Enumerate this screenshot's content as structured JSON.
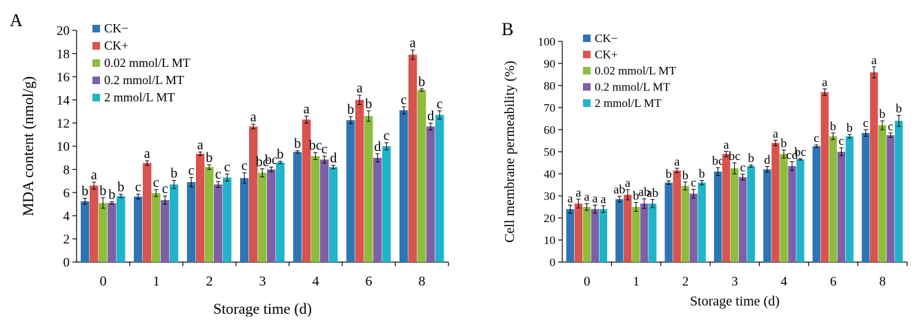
{
  "chart_data": [
    {
      "panel_label": "A",
      "type": "bar",
      "xlabel": "Storage time (d)",
      "ylabel": "MDA content (nmol/g)",
      "ylim": [
        0,
        20
      ],
      "yticks": [
        "0",
        "2",
        "4",
        "6",
        "8",
        "10",
        "12",
        "14",
        "16",
        "18",
        "20"
      ],
      "grid": false,
      "legend_position": "top-left",
      "categories": [
        "0",
        "1",
        "2",
        "3",
        "4",
        "6",
        "8"
      ],
      "series": [
        {
          "name": "CK−",
          "color": "#2e75b6",
          "values": [
            5.25,
            5.65,
            6.9,
            7.25,
            9.5,
            12.25,
            13.1
          ],
          "errors": [
            0.25,
            0.2,
            0.4,
            0.45,
            0.1,
            0.3,
            0.3
          ],
          "labels": [
            "b",
            "c",
            "c",
            "c",
            "b",
            "b",
            "c"
          ]
        },
        {
          "name": "CK+",
          "color": "#d9534f",
          "values": [
            6.6,
            8.55,
            9.35,
            11.7,
            12.3,
            14.0,
            17.9
          ],
          "errors": [
            0.3,
            0.2,
            0.15,
            0.2,
            0.3,
            0.4,
            0.4
          ],
          "labels": [
            "a",
            "a",
            "a",
            "a",
            "a",
            "a",
            "a"
          ]
        },
        {
          "name": "0.02 mmol/L MT",
          "color": "#8ebd3e",
          "values": [
            5.1,
            5.95,
            8.2,
            7.7,
            9.15,
            12.6,
            14.85
          ],
          "errors": [
            0.45,
            0.3,
            0.2,
            0.35,
            0.3,
            0.45,
            0.1
          ],
          "labels": [
            "b",
            "c",
            "b",
            "bc",
            "bc",
            "b",
            "b"
          ]
        },
        {
          "name": "0.2 mmol/L MT",
          "color": "#7f5fa8",
          "values": [
            5.1,
            5.35,
            6.7,
            8.0,
            8.85,
            9.0,
            11.7
          ],
          "errors": [
            0.1,
            0.35,
            0.25,
            0.2,
            0.3,
            0.35,
            0.3
          ],
          "labels": [
            "b",
            "c",
            "c",
            "bc",
            "c",
            "d",
            "d"
          ]
        },
        {
          "name": "2 mmol/L MT",
          "color": "#1fb4c9",
          "values": [
            5.7,
            6.7,
            7.3,
            8.6,
            8.2,
            10.0,
            12.7
          ],
          "errors": [
            0.15,
            0.35,
            0.3,
            0.1,
            0.15,
            0.3,
            0.35
          ],
          "labels": [
            "b",
            "b",
            "c",
            "b",
            "d",
            "c",
            "c"
          ]
        }
      ]
    },
    {
      "panel_label": "B",
      "type": "bar",
      "xlabel": "Storage time (d)",
      "ylabel": "Cell membrane permeability (%)",
      "ylim": [
        0,
        100
      ],
      "yticks": [
        "0",
        "10",
        "20",
        "30",
        "40",
        "50",
        "60",
        "70",
        "80",
        "90",
        "100"
      ],
      "grid": false,
      "legend_position": "top-left",
      "categories": [
        "0",
        "1",
        "2",
        "3",
        "4",
        "6",
        "8"
      ],
      "series": [
        {
          "name": "CK−",
          "color": "#2e75b6",
          "values": [
            24,
            28.5,
            36,
            41,
            42,
            52.5,
            58.5
          ],
          "errors": [
            1.8,
            1.3,
            0.8,
            1.8,
            1.3,
            0.6,
            1.5
          ],
          "labels": [
            "a",
            "ab",
            "b",
            "bc",
            "d",
            "c",
            "c"
          ]
        },
        {
          "name": "CK+",
          "color": "#d9534f",
          "values": [
            26.5,
            30.5,
            41.5,
            49,
            54,
            77,
            86
          ],
          "errors": [
            2.0,
            2.3,
            1.0,
            1.2,
            1.2,
            1.5,
            2.5
          ],
          "labels": [
            "a",
            "a",
            "a",
            "a",
            "a",
            "a",
            "a"
          ]
        },
        {
          "name": "0.02 mmol/L MT",
          "color": "#8ebd3e",
          "values": [
            25,
            25,
            34.5,
            42.5,
            49,
            57,
            62
          ],
          "errors": [
            1.5,
            2.0,
            1.8,
            2.5,
            1.8,
            1.5,
            2.0
          ],
          "labels": [
            "a",
            "b",
            "b",
            "bc",
            "b",
            "b",
            "b"
          ]
        },
        {
          "name": "0.2 mmol/L MT",
          "color": "#7f5fa8",
          "values": [
            24,
            26.5,
            31,
            38.5,
            43.5,
            50,
            57.5
          ],
          "errors": [
            1.8,
            2.2,
            2.0,
            1.3,
            2.0,
            1.8,
            1.0
          ],
          "labels": [
            "a",
            "ab",
            "c",
            "c",
            "cd",
            "c",
            "c"
          ]
        },
        {
          "name": "2 mmol/L MT",
          "color": "#1fb4c9",
          "values": [
            24,
            26.5,
            36,
            43.5,
            46.5,
            57,
            64
          ],
          "errors": [
            1.5,
            1.8,
            1.0,
            0.5,
            0.3,
            0.8,
            2.5
          ],
          "labels": [
            "a",
            "ab",
            "b",
            "b",
            "bc",
            "b",
            "b"
          ]
        }
      ]
    }
  ]
}
